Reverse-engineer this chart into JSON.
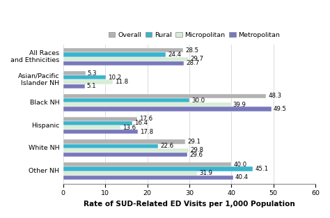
{
  "categories": [
    "All Races\nand Ethnicities",
    "Asian/Pacific\nIslander NH",
    "Black NH",
    "Hispanic",
    "White NH",
    "Other NH"
  ],
  "series": {
    "Overall": [
      28.5,
      5.3,
      48.3,
      17.6,
      29.1,
      40.0
    ],
    "Rural": [
      24.4,
      10.2,
      30.0,
      16.4,
      22.6,
      45.1
    ],
    "Micropolitan": [
      29.7,
      11.8,
      39.9,
      13.6,
      29.8,
      31.9
    ],
    "Metropolitan": [
      28.7,
      5.1,
      49.5,
      17.8,
      29.6,
      40.4
    ]
  },
  "colors": {
    "Overall": "#b2b2b2",
    "Rural": "#3ab4cc",
    "Micropolitan": "#d8ecd8",
    "Metropolitan": "#7878bb"
  },
  "legend_order": [
    "Overall",
    "Rural",
    "Micropolitan",
    "Metropolitan"
  ],
  "xlabel": "Rate of SUD-Related ED Visits per 1,000 Population",
  "xlim": [
    0,
    60
  ],
  "xticks": [
    0,
    10,
    20,
    30,
    40,
    50,
    60
  ],
  "bar_height": 0.17,
  "label_fontsize": 6.2,
  "axis_label_fontsize": 7.5,
  "legend_fontsize": 6.8,
  "tick_fontsize": 6.8
}
